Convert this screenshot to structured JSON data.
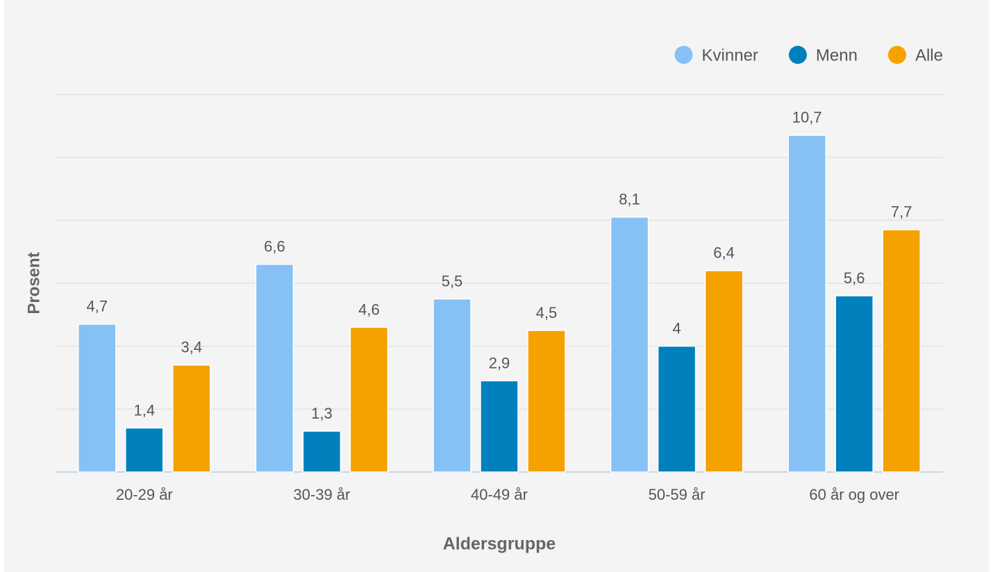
{
  "chart_data": {
    "type": "bar",
    "x_label": "Aldersgruppe",
    "y_label": "Prosent",
    "categories": [
      "20-29 år",
      "30-39 år",
      "40-49 år",
      "50-59 år",
      "60 år og over"
    ],
    "series": [
      {
        "name": "Kvinner",
        "color": "#85c1f5",
        "values": [
          4.7,
          6.6,
          5.5,
          8.1,
          10.7
        ],
        "value_labels": [
          "4,7",
          "6,6",
          "5,5",
          "8,1",
          "10,7"
        ]
      },
      {
        "name": "Menn",
        "color": "#0080bd",
        "values": [
          1.4,
          1.3,
          2.9,
          4,
          5.6
        ],
        "value_labels": [
          "1,4",
          "1,3",
          "2,9",
          "4",
          "5,6"
        ]
      },
      {
        "name": "Alle",
        "color": "#f5a100",
        "values": [
          3.4,
          4.6,
          4.5,
          6.4,
          7.7
        ],
        "value_labels": [
          "3,4",
          "4,6",
          "4,5",
          "6,4",
          "7,7"
        ]
      }
    ],
    "ylim": [
      0,
      12
    ],
    "yticks": [
      0,
      2,
      4,
      6,
      8,
      10,
      12
    ],
    "grid": true,
    "legend": "top-right"
  }
}
